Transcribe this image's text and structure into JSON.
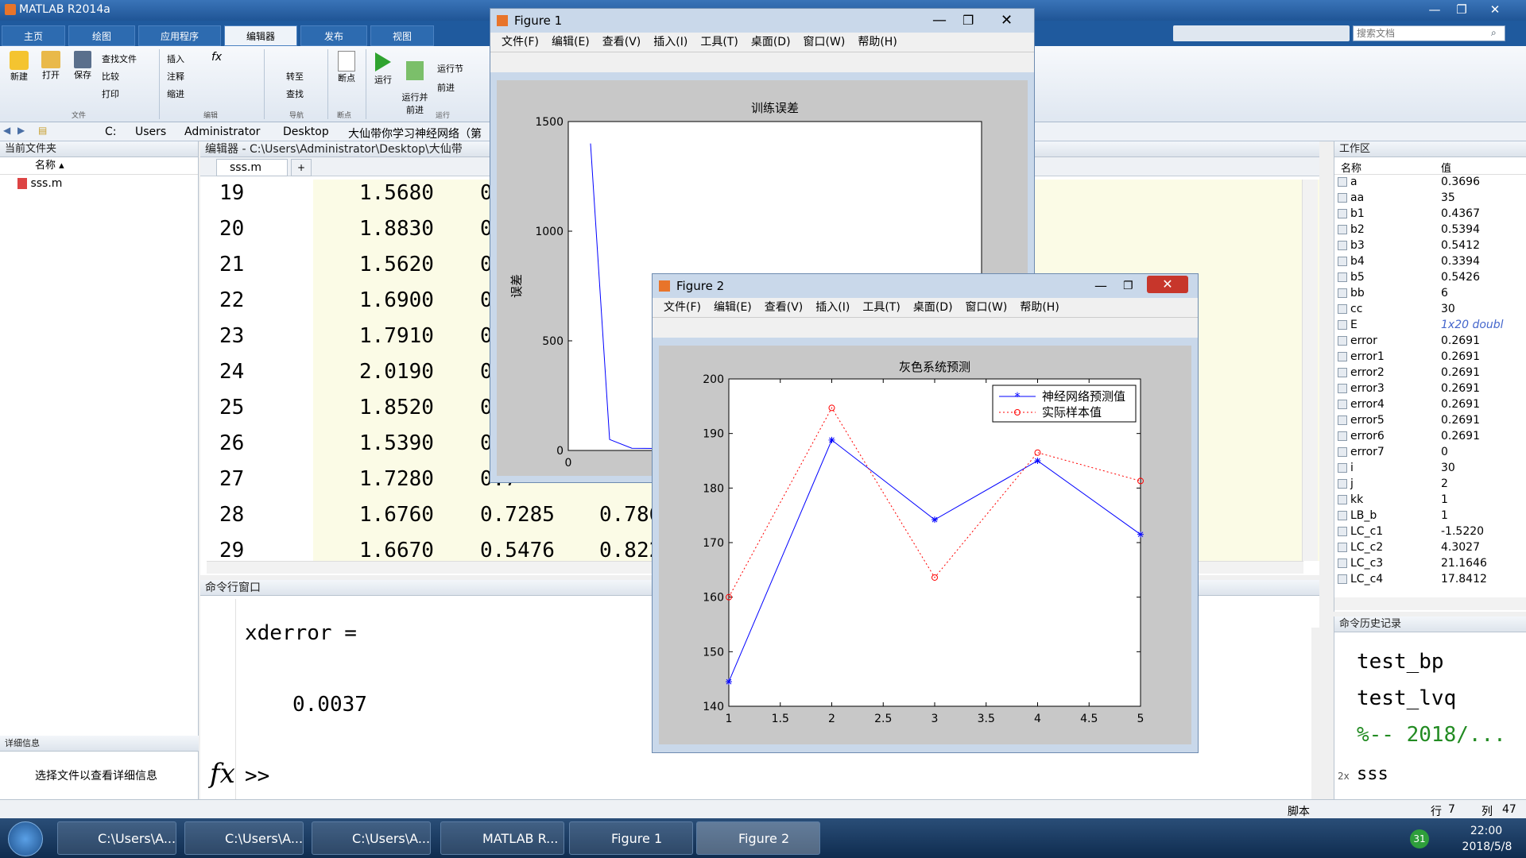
{
  "window": {
    "title": "MATLAB R2014a"
  },
  "tabs": [
    {
      "label": "主页"
    },
    {
      "label": "绘图"
    },
    {
      "label": "应用程序"
    },
    {
      "label": "编辑器"
    },
    {
      "label": "发布"
    },
    {
      "label": "视图"
    }
  ],
  "search_placeholder": "搜索文档",
  "ribbon": {
    "new": "新建",
    "open": "打开",
    "save": "保存",
    "find_files": "查找文件",
    "compare": "比较",
    "print": "打印",
    "insert": "插入",
    "fx": "fx",
    "comment": "注释",
    "indent": "缩进",
    "goto": "转至",
    "find": "查找",
    "breakpoint": "断点",
    "run": "运行",
    "run_advance": "运行并\n前进",
    "run_section": "运行节",
    "advance": "前进",
    "groups": [
      "文件",
      "编辑",
      "导航",
      "断点",
      "运行"
    ]
  },
  "address": [
    "C:",
    "Users",
    "Administrator",
    "Desktop",
    "大仙带你学习神经网络（第"
  ],
  "current_folder": {
    "title": "当前文件夹",
    "col_name": "名称",
    "files": [
      "sss.m"
    ],
    "details_title": "详细信息",
    "details_text": "选择文件以查看详细信息"
  },
  "editor": {
    "title": "编辑器 - C:\\Users\\Administrator\\Desktop\\大仙带",
    "tab": "sss.m",
    "rows": [
      {
        "n": "19",
        "a": "1.5680",
        "b": "0",
        "c": ""
      },
      {
        "n": "20",
        "a": "1.8830",
        "b": "0",
        "c": ""
      },
      {
        "n": "21",
        "a": "1.5620",
        "b": "0",
        "c": ""
      },
      {
        "n": "22",
        "a": "1.6900",
        "b": "0",
        "c": ""
      },
      {
        "n": "23",
        "a": "1.7910",
        "b": "0",
        "c": ""
      },
      {
        "n": "24",
        "a": "2.0190",
        "b": "0",
        "c": ""
      },
      {
        "n": "25",
        "a": "1.8520",
        "b": "0",
        "c": ""
      },
      {
        "n": "26",
        "a": "1.5390",
        "b": "0",
        "c": ""
      },
      {
        "n": "27",
        "a": "1.7280",
        "b": "0.7",
        "c": ""
      },
      {
        "n": "28",
        "a": "1.6760",
        "b": "0.7285",
        "c": "0.786"
      },
      {
        "n": "29",
        "a": "1.6670",
        "b": "0.5476",
        "c": "0.822"
      }
    ]
  },
  "command": {
    "title": "命令行窗口",
    "line1": "xderror =",
    "line2": "0.0037",
    "prompt": ">>",
    "fx": "fx"
  },
  "workspace": {
    "title": "工作区",
    "col_name": "名称",
    "col_value": "值",
    "vars": [
      {
        "name": "a",
        "value": "0.3696"
      },
      {
        "name": "aa",
        "value": "35"
      },
      {
        "name": "b1",
        "value": "0.4367"
      },
      {
        "name": "b2",
        "value": "0.5394"
      },
      {
        "name": "b3",
        "value": "0.5412"
      },
      {
        "name": "b4",
        "value": "0.3394"
      },
      {
        "name": "b5",
        "value": "0.5426"
      },
      {
        "name": "bb",
        "value": "6"
      },
      {
        "name": "cc",
        "value": "30"
      },
      {
        "name": "E",
        "value": "1x20 doubl"
      },
      {
        "name": "error",
        "value": "0.2691"
      },
      {
        "name": "error1",
        "value": "0.2691"
      },
      {
        "name": "error2",
        "value": "0.2691"
      },
      {
        "name": "error3",
        "value": "0.2691"
      },
      {
        "name": "error4",
        "value": "0.2691"
      },
      {
        "name": "error5",
        "value": "0.2691"
      },
      {
        "name": "error6",
        "value": "0.2691"
      },
      {
        "name": "error7",
        "value": "0"
      },
      {
        "name": "i",
        "value": "30"
      },
      {
        "name": "j",
        "value": "2"
      },
      {
        "name": "kk",
        "value": "1"
      },
      {
        "name": "LB_b",
        "value": "1"
      },
      {
        "name": "LC_c1",
        "value": "-1.5220"
      },
      {
        "name": "LC_c2",
        "value": "4.3027"
      },
      {
        "name": "LC_c3",
        "value": "21.1646"
      },
      {
        "name": "LC_c4",
        "value": "17.8412"
      }
    ]
  },
  "history": {
    "title": "命令历史记录",
    "items": [
      "test_bp",
      "test_lvq",
      "%-- 2018/...",
      "sss"
    ],
    "prefix": "2x"
  },
  "status": {
    "left": "脚本",
    "row_label": "行",
    "row": "7",
    "col_label": "列",
    "col": "47"
  },
  "figure_menu": [
    "文件(F)",
    "编辑(E)",
    "查看(V)",
    "插入(I)",
    "工具(T)",
    "桌面(D)",
    "窗口(W)",
    "帮助(H)"
  ],
  "figure1": {
    "title": "Figure 1",
    "chart_data": {
      "type": "line",
      "title": "训练误差",
      "ylabel": "误差",
      "ylim": [
        0,
        1500
      ],
      "yticks": [
        "0",
        "500",
        "1000",
        "1500"
      ],
      "xtick_visible": "0",
      "series": [
        {
          "values": [
            1400,
            50,
            10,
            5
          ]
        }
      ],
      "color": "#0000ff"
    }
  },
  "figure2": {
    "title": "Figure 2",
    "chart_data": {
      "type": "line",
      "title": "灰色系统预测",
      "x": [
        1,
        2,
        3,
        4,
        5
      ],
      "xlim": [
        1,
        5
      ],
      "ylim": [
        140,
        200
      ],
      "xticks": [
        "1",
        "1.5",
        "2",
        "2.5",
        "3",
        "3.5",
        "4",
        "4.5",
        "5"
      ],
      "yticks": [
        "140",
        "150",
        "160",
        "170",
        "180",
        "190",
        "200"
      ],
      "series": [
        {
          "name": "神经网络预测值",
          "values": [
            144.5,
            188.8,
            174.2,
            185.0,
            171.5
          ],
          "color": "#0000ff",
          "marker": "star",
          "style": "solid"
        },
        {
          "name": "实际样本值",
          "values": [
            160.0,
            194.7,
            163.6,
            186.5,
            181.3
          ],
          "color": "#ff0000",
          "marker": "circle",
          "style": "dotted"
        }
      ],
      "legend": "top-right"
    }
  },
  "taskbar": {
    "items": [
      "C:\\Users\\A...",
      "C:\\Users\\A...",
      "C:\\Users\\A...",
      "MATLAB R...",
      "Figure 1",
      "Figure 2"
    ],
    "time": "22:00",
    "date": "2018/5/8",
    "badge": "31"
  }
}
